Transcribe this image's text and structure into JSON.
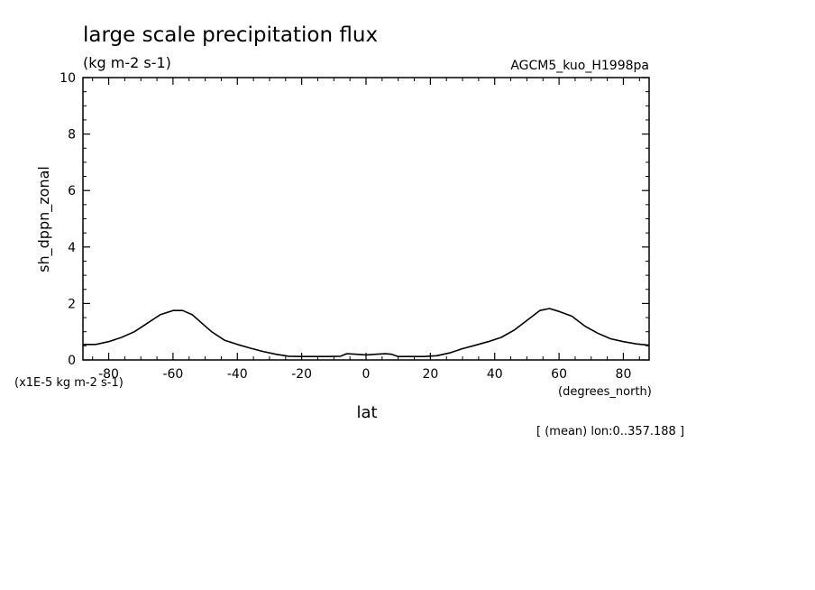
{
  "chart_data": {
    "type": "line",
    "title": "large scale precipitation flux",
    "units": "(kg m-2 s-1)",
    "dataset": "AGCM5_kuo_H1998pa",
    "ylabel": "sh_dppn_zonal",
    "xlabel": "lat",
    "xunits": "(degrees_north)",
    "yscale_note": "(x1E-5 kg m-2 s-1)",
    "footnote": "[ (mean) lon:0..357.188 ]",
    "xlim": [
      -88,
      88
    ],
    "ylim": [
      0,
      10
    ],
    "xticks": [
      -80,
      -60,
      -40,
      -20,
      0,
      20,
      40,
      60,
      80
    ],
    "xtick_labels": [
      "-80",
      "-60",
      "-40",
      "-20",
      "0",
      "20",
      "40",
      "60",
      "80"
    ],
    "yticks": [
      0,
      2,
      4,
      6,
      8,
      10
    ],
    "ytick_labels": [
      "0",
      "2",
      "4",
      "6",
      "8",
      "10"
    ],
    "grid": false,
    "series": [
      {
        "x": [
          -88,
          -84,
          -80,
          -76,
          -72,
          -68,
          -64,
          -60,
          -57,
          -54,
          -51,
          -48,
          -44,
          -40,
          -36,
          -32,
          -28,
          -24,
          -20,
          -16,
          -12,
          -8,
          -6,
          -3,
          0,
          3,
          6,
          8,
          10,
          14,
          18,
          22,
          26,
          30,
          34,
          38,
          42,
          46,
          50,
          54,
          57,
          60,
          64,
          68,
          72,
          76,
          80,
          84,
          88
        ],
        "y": [
          0.55,
          0.55,
          0.65,
          0.8,
          1.0,
          1.3,
          1.6,
          1.75,
          1.75,
          1.6,
          1.3,
          1.0,
          0.7,
          0.55,
          0.42,
          0.3,
          0.2,
          0.13,
          0.12,
          0.12,
          0.12,
          0.13,
          0.22,
          0.2,
          0.18,
          0.2,
          0.22,
          0.2,
          0.12,
          0.12,
          0.12,
          0.15,
          0.25,
          0.4,
          0.52,
          0.65,
          0.8,
          1.05,
          1.4,
          1.75,
          1.82,
          1.72,
          1.55,
          1.2,
          0.95,
          0.75,
          0.65,
          0.57,
          0.52
        ]
      }
    ]
  }
}
